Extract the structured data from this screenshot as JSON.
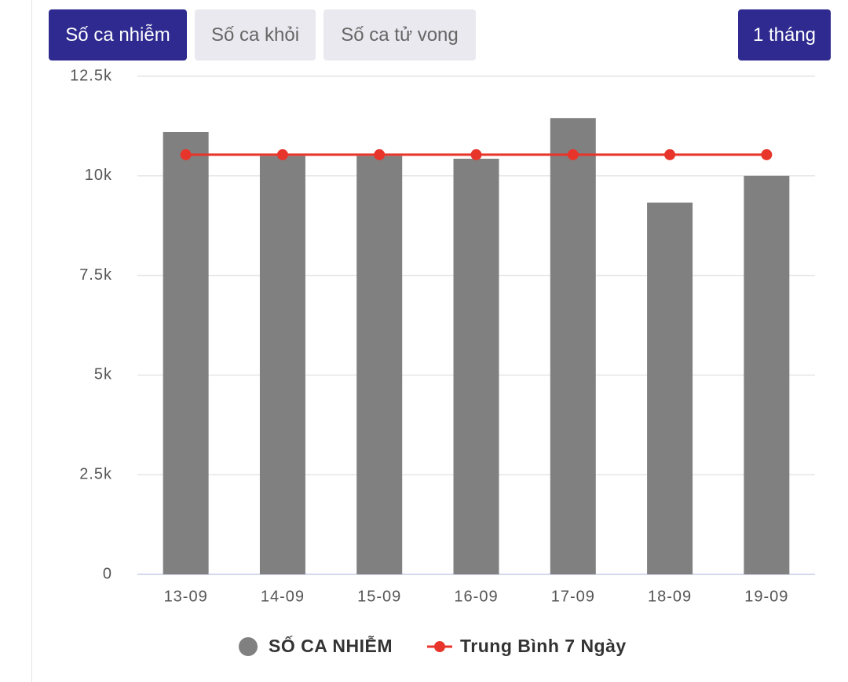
{
  "tabs": [
    "Số ca nhiễm",
    "Số ca khỏi",
    "Số ca tử vong"
  ],
  "period": "1 tháng",
  "chart_data": {
    "type": "bar",
    "categories": [
      "13-09",
      "14-09",
      "15-09",
      "16-09",
      "17-09",
      "18-09",
      "19-09"
    ],
    "series": [
      {
        "name": "SỐ CA NHIỄM",
        "type": "bar",
        "color": "#808080",
        "values": [
          11100,
          10500,
          10500,
          10430,
          11450,
          9330,
          10000
        ]
      },
      {
        "name": "Trung Bình 7 Ngày",
        "type": "line",
        "color": "#e8352b",
        "values": [
          10530,
          10530,
          10530,
          10530,
          10530,
          10530,
          10530
        ]
      }
    ],
    "ylim": [
      0,
      12500
    ],
    "yticks": [
      0,
      {
        "value": 2500,
        "label": "2.5k"
      },
      {
        "value": 5000,
        "label": "5k"
      },
      {
        "value": 7500,
        "label": "7.5k"
      },
      {
        "value": 10000,
        "label": "10k"
      },
      {
        "value": 12500,
        "label": "12.5k"
      }
    ],
    "grid": true
  }
}
